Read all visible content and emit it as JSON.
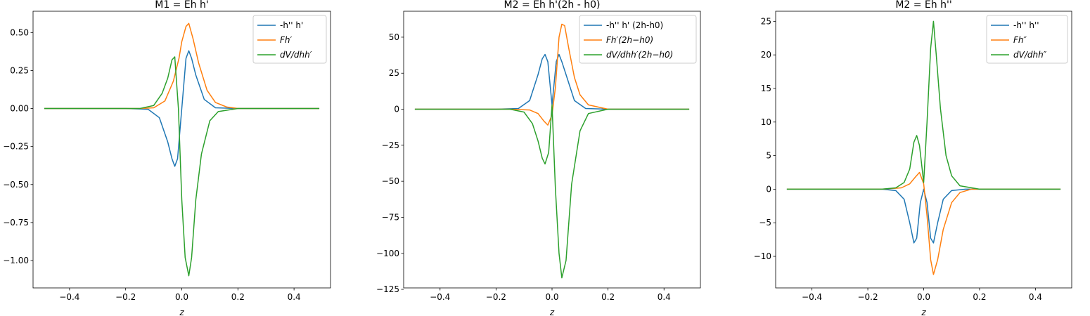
{
  "chart_data": [
    {
      "type": "line",
      "title": "M1 = Eh h'",
      "xlabel": "z",
      "ylabel": "",
      "xlim": [
        -0.53,
        0.53
      ],
      "ylim": [
        -1.18,
        0.64
      ],
      "xticks": [
        -0.4,
        -0.2,
        0.0,
        0.2,
        0.4
      ],
      "xtick_labels": [
        "−0.4",
        "−0.2",
        "0.0",
        "0.2",
        "0.4"
      ],
      "yticks": [
        0.5,
        0.25,
        0.0,
        -0.25,
        -0.5,
        -0.75,
        -1.0
      ],
      "ytick_labels": [
        "0.50",
        "0.25",
        "0.00",
        "−0.25",
        "−0.50",
        "−0.75",
        "−1.00"
      ],
      "legend_position": "top-right",
      "series": [
        {
          "name": "-h'' h'",
          "color": "#1f77b4",
          "x": [
            -0.49,
            -0.2,
            -0.12,
            -0.08,
            -0.05,
            -0.035,
            -0.025,
            -0.015,
            0.0,
            0.015,
            0.025,
            0.035,
            0.05,
            0.08,
            0.12,
            0.2,
            0.49
          ],
          "y": [
            0.0,
            0.0,
            -0.005,
            -0.06,
            -0.22,
            -0.33,
            -0.38,
            -0.33,
            0.0,
            0.33,
            0.38,
            0.33,
            0.22,
            0.06,
            0.005,
            0.0,
            0.0
          ]
        },
        {
          "name": "Fh′",
          "color": "#ff7f0e",
          "x": [
            -0.49,
            -0.15,
            -0.1,
            -0.06,
            -0.03,
            -0.01,
            0.0,
            0.015,
            0.025,
            0.04,
            0.06,
            0.09,
            0.12,
            0.16,
            0.2,
            0.49
          ],
          "y": [
            0.0,
            0.0,
            0.005,
            0.05,
            0.18,
            0.33,
            0.44,
            0.54,
            0.56,
            0.46,
            0.3,
            0.12,
            0.04,
            0.01,
            0.0,
            0.0
          ]
        },
        {
          "name": "dV/dhh′",
          "color": "#2ca02c",
          "x": [
            -0.49,
            -0.15,
            -0.1,
            -0.07,
            -0.05,
            -0.035,
            -0.025,
            -0.012,
            0.0,
            0.012,
            0.025,
            0.035,
            0.05,
            0.07,
            0.1,
            0.13,
            0.2,
            0.49
          ],
          "y": [
            0.0,
            0.0,
            0.02,
            0.1,
            0.2,
            0.32,
            0.34,
            0.0,
            -0.6,
            -0.98,
            -1.1,
            -0.98,
            -0.6,
            -0.3,
            -0.08,
            -0.02,
            0.0,
            0.0
          ]
        }
      ]
    },
    {
      "type": "line",
      "title": "M2 = Eh h'(2h - h0)",
      "xlabel": "z",
      "ylabel": "",
      "xlim": [
        -0.53,
        0.53
      ],
      "ylim": [
        -124,
        68
      ],
      "xticks": [
        -0.4,
        -0.2,
        0.0,
        0.2,
        0.4
      ],
      "xtick_labels": [
        "−0.4",
        "−0.2",
        "0.0",
        "0.2",
        "0.4"
      ],
      "yticks": [
        50,
        25,
        0,
        -25,
        -50,
        -75,
        -100,
        -125
      ],
      "ytick_labels": [
        "50",
        "25",
        "0",
        "−25",
        "−50",
        "−75",
        "−100",
        "−125"
      ],
      "legend_position": "top-right",
      "series": [
        {
          "name": "-h'' h' (2h-h0)",
          "color": "#1f77b4",
          "x": [
            -0.49,
            -0.2,
            -0.12,
            -0.08,
            -0.05,
            -0.035,
            -0.025,
            -0.015,
            0.0,
            0.015,
            0.025,
            0.035,
            0.05,
            0.08,
            0.12,
            0.2,
            0.49
          ],
          "y": [
            0.0,
            0.0,
            0.5,
            6,
            24,
            35,
            38,
            33,
            3,
            33,
            38,
            33,
            24,
            6,
            0.5,
            0.0,
            0.0
          ]
        },
        {
          "name": "Fh′(2h−h0)",
          "color": "#ff7f0e",
          "x": [
            -0.49,
            -0.15,
            -0.08,
            -0.05,
            -0.03,
            -0.015,
            0.0,
            0.012,
            0.025,
            0.035,
            0.045,
            0.06,
            0.08,
            0.1,
            0.13,
            0.2,
            0.49
          ],
          "y": [
            0.0,
            0.0,
            -0.5,
            -3,
            -8,
            -11,
            -4,
            15,
            50,
            59,
            58,
            42,
            22,
            10,
            3,
            0.0,
            0.0
          ]
        },
        {
          "name": "dV/dhh′(2h−h0)",
          "color": "#2ca02c",
          "x": [
            -0.49,
            -0.15,
            -0.1,
            -0.07,
            -0.05,
            -0.035,
            -0.025,
            -0.012,
            0.0,
            0.012,
            0.025,
            0.035,
            0.05,
            0.07,
            0.1,
            0.13,
            0.2,
            0.49
          ],
          "y": [
            0.0,
            0.0,
            -2,
            -10,
            -22,
            -34,
            -38,
            -30,
            3,
            -55,
            -100,
            -117,
            -105,
            -52,
            -15,
            -3,
            0.0,
            0.0
          ]
        }
      ]
    },
    {
      "type": "line",
      "title": "M2 = Eh h''",
      "xlabel": "z",
      "ylabel": "",
      "xlim": [
        -0.53,
        0.53
      ],
      "ylim": [
        -14.7,
        26.5
      ],
      "xticks": [
        -0.4,
        -0.2,
        0.0,
        0.2,
        0.4
      ],
      "xtick_labels": [
        "−0.4",
        "−0.2",
        "0.0",
        "0.2",
        "0.4"
      ],
      "yticks": [
        25,
        20,
        15,
        10,
        5,
        0,
        -5,
        -10
      ],
      "ytick_labels": [
        "25",
        "20",
        "15",
        "10",
        "5",
        "0",
        "−5",
        "−10"
      ],
      "legend_position": "top-right",
      "series": [
        {
          "name": "-h'' h''",
          "color": "#1f77b4",
          "x": [
            -0.49,
            -0.15,
            -0.1,
            -0.07,
            -0.05,
            -0.035,
            -0.025,
            -0.012,
            0.0,
            0.012,
            0.025,
            0.035,
            0.05,
            0.07,
            0.1,
            0.15,
            0.49
          ],
          "y": [
            0.0,
            0.0,
            -0.2,
            -1.5,
            -5,
            -8,
            -7.3,
            -2,
            0.0,
            -2,
            -7.3,
            -8,
            -5,
            -1.5,
            -0.2,
            0.0,
            0.0
          ]
        },
        {
          "name": "Fh″",
          "color": "#ff7f0e",
          "x": [
            -0.49,
            -0.15,
            -0.08,
            -0.05,
            -0.03,
            -0.015,
            0.0,
            0.012,
            0.025,
            0.035,
            0.05,
            0.07,
            0.1,
            0.13,
            0.17,
            0.49
          ],
          "y": [
            0.0,
            0.0,
            0.2,
            0.8,
            1.8,
            2.5,
            0.8,
            -4,
            -10.5,
            -12.7,
            -10.5,
            -6,
            -2,
            -0.5,
            0.0,
            0.0
          ]
        },
        {
          "name": "dV/dhh″",
          "color": "#2ca02c",
          "x": [
            -0.49,
            -0.15,
            -0.1,
            -0.07,
            -0.05,
            -0.035,
            -0.025,
            -0.015,
            0.0,
            0.012,
            0.025,
            0.035,
            0.045,
            0.06,
            0.08,
            0.1,
            0.13,
            0.2,
            0.49
          ],
          "y": [
            0.0,
            0.0,
            0.2,
            1,
            3,
            7,
            8,
            6.5,
            1,
            10,
            21,
            25,
            20,
            12,
            5,
            2,
            0.5,
            0.0,
            0.0
          ]
        }
      ]
    }
  ]
}
